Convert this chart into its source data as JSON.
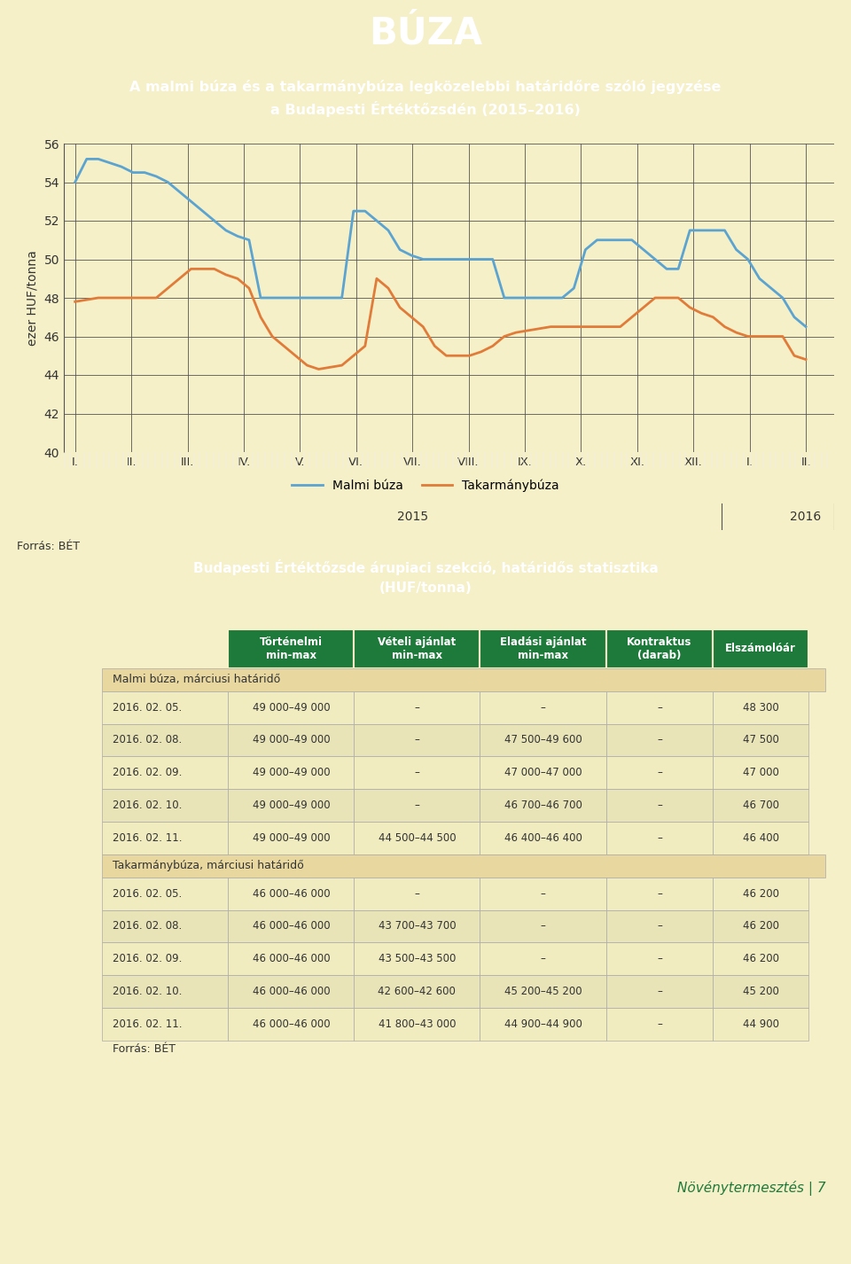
{
  "title_main": "BÚZA",
  "title_main_bg": "#1e7a3a",
  "title_main_color": "#ffffff",
  "chart_title_line1": "A malmi búza és a takarmánybúza legközelebbi határidőre szóló jegyzése",
  "chart_title_line2": "a Budapesti Értéktőzsdén (2015–2016)",
  "chart_title_bg": "#8dc63f",
  "chart_title_color": "#ffffff",
  "chart_bg": "#f5f0c8",
  "outer_bg": "#f5f0c8",
  "ylabel": "ezer HUF/tonna",
  "ylim": [
    40,
    56
  ],
  "yticks": [
    40,
    42,
    44,
    46,
    48,
    50,
    52,
    54,
    56
  ],
  "xtick_labels": [
    "I.",
    "II.",
    "III.",
    "IV.",
    "V.",
    "VI.",
    "VII.",
    "VIII.",
    "IX.",
    "X.",
    "XI.",
    "XII.",
    "I.",
    "II."
  ],
  "malmi_color": "#5ba3d0",
  "takarmany_color": "#e07b39",
  "malmi_y": [
    54.0,
    55.2,
    55.2,
    55.0,
    54.8,
    54.5,
    54.5,
    54.3,
    54.0,
    53.5,
    53.0,
    52.5,
    52.0,
    51.5,
    51.2,
    51.0,
    48.0,
    48.0,
    48.0,
    48.0,
    48.0,
    48.0,
    48.0,
    48.0,
    52.5,
    52.5,
    52.0,
    51.5,
    50.5,
    50.2,
    50.0,
    50.0,
    50.0,
    50.0,
    50.0,
    50.0,
    50.0,
    48.0,
    48.0,
    48.0,
    48.0,
    48.0,
    48.0,
    48.5,
    50.5,
    51.0,
    51.0,
    51.0,
    51.0,
    50.5,
    50.0,
    49.5,
    49.5,
    51.5,
    51.5,
    51.5,
    51.5,
    50.5,
    50.0,
    49.0,
    48.5,
    48.0,
    47.0,
    46.5
  ],
  "takarmany_y": [
    47.8,
    47.9,
    48.0,
    48.0,
    48.0,
    48.0,
    48.0,
    48.0,
    48.5,
    49.0,
    49.5,
    49.5,
    49.5,
    49.2,
    49.0,
    48.5,
    47.0,
    46.0,
    45.5,
    45.0,
    44.5,
    44.3,
    44.4,
    44.5,
    45.0,
    45.5,
    49.0,
    48.5,
    47.5,
    47.0,
    46.5,
    45.5,
    45.0,
    45.0,
    45.0,
    45.2,
    45.5,
    46.0,
    46.2,
    46.3,
    46.4,
    46.5,
    46.5,
    46.5,
    46.5,
    46.5,
    46.5,
    46.5,
    47.0,
    47.5,
    48.0,
    48.0,
    48.0,
    47.5,
    47.2,
    47.0,
    46.5,
    46.2,
    46.0,
    46.0,
    46.0,
    46.0,
    45.0,
    44.8
  ],
  "forrás_chart": "Forrás: BÉT",
  "table_title_line1": "Budapesti Értéktőzsde árupiaci szekció, határidős statisztika",
  "table_title_line2": "(HUF/tonna)",
  "table_title_bg": "#8dc63f",
  "table_title_color": "#ffffff",
  "table_header_bg": "#1e7a3a",
  "table_header_color": "#ffffff",
  "table_row_bg1": "#f5f0c8",
  "table_row_bg2": "#f5f0c8",
  "table_section_bg": "#e8d8a0",
  "col_headers": [
    "Történelmi\nmin-max",
    "Vételi ajánlat\nmin-max",
    "Eladási ajánlat\nmin-max",
    "Kontraktus\n(darab)",
    "Elszámolóár"
  ],
  "section1_label": "Malmi búza, márciusi határidő",
  "section2_label": "Takarmánybúza, márciusi határidő",
  "malmi_rows": [
    [
      "2016. 02. 05.",
      "49 000–49 000",
      "–",
      "–",
      "–",
      "48 300"
    ],
    [
      "2016. 02. 08.",
      "49 000–49 000",
      "–",
      "47 500–49 600",
      "–",
      "47 500"
    ],
    [
      "2016. 02. 09.",
      "49 000–49 000",
      "–",
      "47 000–47 000",
      "–",
      "47 000"
    ],
    [
      "2016. 02. 10.",
      "49 000–49 000",
      "–",
      "46 700–46 700",
      "–",
      "46 700"
    ],
    [
      "2016. 02. 11.",
      "49 000–49 000",
      "44 500–44 500",
      "46 400–46 400",
      "–",
      "46 400"
    ]
  ],
  "takarmany_rows": [
    [
      "2016. 02. 05.",
      "46 000–46 000",
      "–",
      "–",
      "–",
      "46 200"
    ],
    [
      "2016. 02. 08.",
      "46 000–46 000",
      "43 700–43 700",
      "–",
      "–",
      "46 200"
    ],
    [
      "2016. 02. 09.",
      "46 000–46 000",
      "43 500–43 500",
      "–",
      "–",
      "46 200"
    ],
    [
      "2016. 02. 10.",
      "46 000–46 000",
      "42 600–42 600",
      "45 200–45 200",
      "–",
      "45 200"
    ],
    [
      "2016. 02. 11.",
      "46 000–46 000",
      "41 800–43 000",
      "44 900–44 900",
      "–",
      "44 900"
    ]
  ],
  "forrás_table": "Forrás: BÉT",
  "footer_text": "Növénytermesztés | 7",
  "footer_color": "#1e7a3a"
}
